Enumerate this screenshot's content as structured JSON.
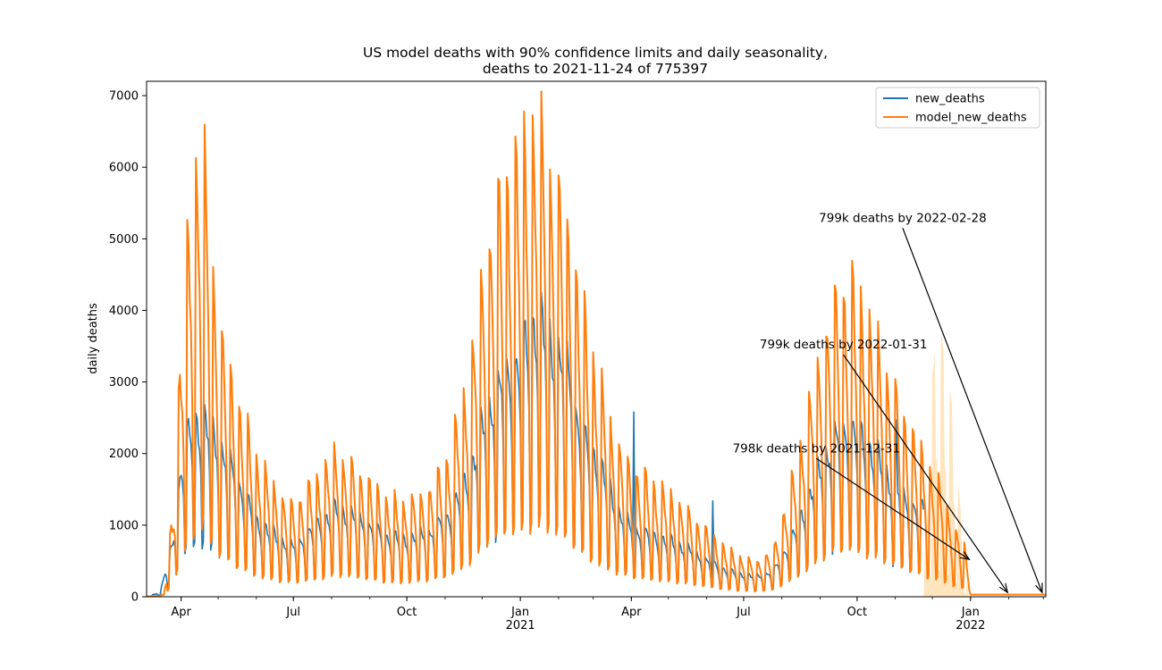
{
  "chart_data": {
    "type": "line",
    "title_line1": "US model deaths with 90% confidence limits and daily seasonality,",
    "title_line2": "deaths to 2021-11-24 of 775397",
    "xlabel": "",
    "ylabel": "daily deaths",
    "x_range": [
      "2020-03-04",
      "2022-03-03"
    ],
    "ylim": [
      0,
      7200
    ],
    "y_ticks": [
      0,
      1000,
      2000,
      3000,
      4000,
      5000,
      6000,
      7000
    ],
    "x_ticks": [
      {
        "date": "2020-04-01",
        "label": "Apr",
        "sublabel": ""
      },
      {
        "date": "2020-07-01",
        "label": "Jul",
        "sublabel": ""
      },
      {
        "date": "2020-10-01",
        "label": "Oct",
        "sublabel": ""
      },
      {
        "date": "2021-01-01",
        "label": "Jan",
        "sublabel": "2021"
      },
      {
        "date": "2021-04-01",
        "label": "Apr",
        "sublabel": ""
      },
      {
        "date": "2021-07-01",
        "label": "Jul",
        "sublabel": ""
      },
      {
        "date": "2021-10-01",
        "label": "Oct",
        "sublabel": ""
      },
      {
        "date": "2022-01-01",
        "label": "Jan",
        "sublabel": "2022"
      }
    ],
    "grid": false,
    "legend_position": "top-right",
    "series": [
      {
        "name": "new_deaths",
        "color": "#1f77b4",
        "weekly_pattern": [
          1.15,
          1.1,
          1.0,
          0.95,
          0.75,
          0.3,
          0.35
        ],
        "envelope": [
          [
            "2020-03-04",
            0
          ],
          [
            "2020-03-15",
            60
          ],
          [
            "2020-03-25",
            700
          ],
          [
            "2020-04-01",
            1700
          ],
          [
            "2020-04-10",
            2300
          ],
          [
            "2020-04-18",
            2300
          ],
          [
            "2020-05-01",
            2000
          ],
          [
            "2020-05-15",
            1600
          ],
          [
            "2020-06-01",
            1000
          ],
          [
            "2020-06-20",
            750
          ],
          [
            "2020-07-01",
            650
          ],
          [
            "2020-07-20",
            950
          ],
          [
            "2020-08-05",
            1150
          ],
          [
            "2020-08-25",
            1000
          ],
          [
            "2020-09-15",
            800
          ],
          [
            "2020-10-01",
            750
          ],
          [
            "2020-10-20",
            850
          ],
          [
            "2020-11-05",
            1100
          ],
          [
            "2020-11-20",
            1600
          ],
          [
            "2020-12-05",
            2400
          ],
          [
            "2020-12-20",
            2900
          ],
          [
            "2021-01-01",
            3100
          ],
          [
            "2021-01-13",
            3650
          ],
          [
            "2021-01-25",
            3300
          ],
          [
            "2021-02-08",
            3000
          ],
          [
            "2021-02-20",
            2100
          ],
          [
            "2021-03-05",
            1800
          ],
          [
            "2021-03-20",
            1150
          ],
          [
            "2021-04-01",
            900
          ],
          [
            "2021-04-20",
            800
          ],
          [
            "2021-05-10",
            680
          ],
          [
            "2021-06-01",
            480
          ],
          [
            "2021-06-20",
            330
          ],
          [
            "2021-07-10",
            260
          ],
          [
            "2021-07-25",
            330
          ],
          [
            "2021-08-10",
            800
          ],
          [
            "2021-08-25",
            1400
          ],
          [
            "2021-09-10",
            2000
          ],
          [
            "2021-09-25",
            2250
          ],
          [
            "2021-10-10",
            2000
          ],
          [
            "2021-10-25",
            1600
          ],
          [
            "2021-11-10",
            1250
          ],
          [
            "2021-11-24",
            1150
          ]
        ],
        "spikes": [
          [
            "2021-04-03",
            2580
          ],
          [
            "2021-06-06",
            1340
          ],
          [
            "2021-11-02",
            2470
          ]
        ]
      },
      {
        "name": "model_new_deaths",
        "color": "#ff7f0e",
        "weekly_pattern": [
          1.55,
          1.45,
          1.2,
          1.0,
          0.7,
          0.22,
          0.25
        ],
        "envelope": [
          [
            "2020-03-04",
            0
          ],
          [
            "2020-03-18",
            20
          ],
          [
            "2020-03-25",
            800
          ],
          [
            "2020-04-01",
            2300
          ],
          [
            "2020-04-10",
            3900
          ],
          [
            "2020-04-18",
            4300
          ],
          [
            "2020-05-01",
            2600
          ],
          [
            "2020-05-15",
            1900
          ],
          [
            "2020-06-01",
            1300
          ],
          [
            "2020-06-20",
            950
          ],
          [
            "2020-07-01",
            850
          ],
          [
            "2020-07-20",
            1100
          ],
          [
            "2020-08-05",
            1350
          ],
          [
            "2020-08-25",
            1150
          ],
          [
            "2020-09-15",
            900
          ],
          [
            "2020-10-01",
            880
          ],
          [
            "2020-10-20",
            1000
          ],
          [
            "2020-11-05",
            1350
          ],
          [
            "2020-11-20",
            2050
          ],
          [
            "2020-12-05",
            3300
          ],
          [
            "2020-12-20",
            3950
          ],
          [
            "2021-01-01",
            4100
          ],
          [
            "2021-01-13",
            4450
          ],
          [
            "2021-01-25",
            4100
          ],
          [
            "2021-02-08",
            3500
          ],
          [
            "2021-02-20",
            2700
          ],
          [
            "2021-03-05",
            2050
          ],
          [
            "2021-03-20",
            1450
          ],
          [
            "2021-04-01",
            1200
          ],
          [
            "2021-04-20",
            1050
          ],
          [
            "2021-05-10",
            880
          ],
          [
            "2021-06-01",
            620
          ],
          [
            "2021-06-20",
            420
          ],
          [
            "2021-07-10",
            320
          ],
          [
            "2021-07-25",
            420
          ],
          [
            "2021-08-10",
            1100
          ],
          [
            "2021-08-25",
            1900
          ],
          [
            "2021-09-10",
            2700
          ],
          [
            "2021-09-25",
            2950
          ],
          [
            "2021-10-10",
            2600
          ],
          [
            "2021-10-25",
            2150
          ],
          [
            "2021-11-10",
            1650
          ],
          [
            "2021-11-24",
            1300
          ],
          [
            "2021-12-10",
            950
          ],
          [
            "2021-12-20",
            600
          ],
          [
            "2021-12-27",
            500
          ],
          [
            "2021-12-30",
            250
          ],
          [
            "2022-01-01",
            30
          ],
          [
            "2022-03-03",
            30
          ]
        ]
      }
    ],
    "confidence_band": {
      "label": "90% confidence limits",
      "color": "#ffe0b2",
      "envelope": [
        [
          "2021-11-24",
          0
        ],
        [
          "2021-11-28",
          2600
        ],
        [
          "2021-12-03",
          3400
        ],
        [
          "2021-12-08",
          3700
        ],
        [
          "2021-12-12",
          3200
        ],
        [
          "2021-12-17",
          2700
        ],
        [
          "2021-12-22",
          1600
        ],
        [
          "2021-12-27",
          600
        ],
        [
          "2021-12-30",
          0
        ]
      ]
    },
    "annotations": [
      {
        "text": "799k deaths by 2022-02-28",
        "text_date": "2021-11-07",
        "text_value": 5300,
        "point_date": "2022-02-28",
        "point_value": 60
      },
      {
        "text": "799k deaths by 2022-01-31",
        "text_date": "2021-09-20",
        "text_value": 3530,
        "point_date": "2022-01-31",
        "point_value": 60
      },
      {
        "text": "798k deaths by 2021-12-31",
        "text_date": "2021-08-29",
        "text_value": 2080,
        "point_date": "2021-12-31",
        "point_value": 520
      }
    ]
  }
}
